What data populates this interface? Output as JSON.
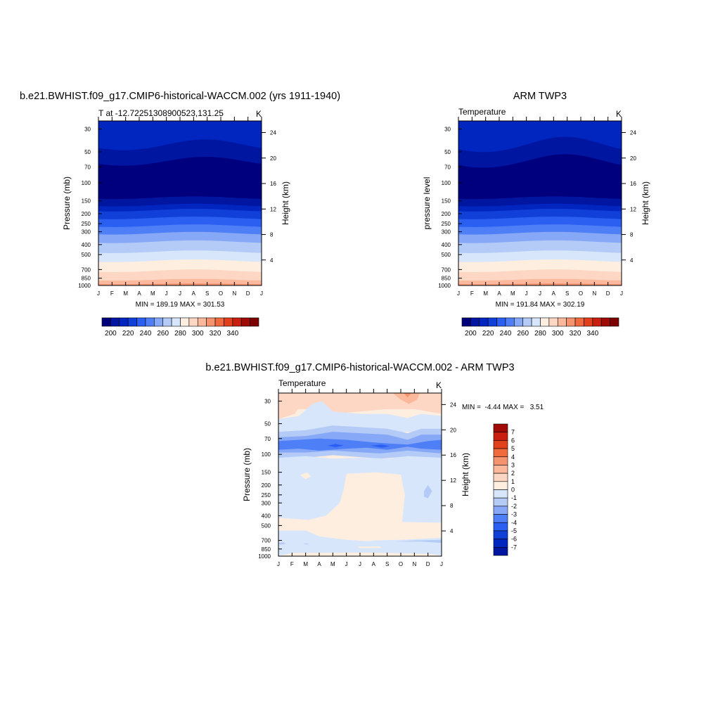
{
  "chart_data": [
    {
      "type": "heatmap",
      "title": "b.e21.BWHIST.f09_g17.CMIP6-historical-WACCM.002 (yrs 1911-1940)",
      "subtitle": "T at -12.72251308900523,131.25",
      "units": "K",
      "ylabel": "Pressure (mb)",
      "ylabel_right": "Height (km)",
      "x_tick_labels": [
        "J",
        "F",
        "M",
        "A",
        "M",
        "J",
        "J",
        "A",
        "S",
        "O",
        "N",
        "D",
        "J"
      ],
      "y_tick_labels": [
        "30",
        "50",
        "70",
        "100",
        "150",
        "200",
        "250",
        "300",
        "400",
        "500",
        "700",
        "850",
        "1000"
      ],
      "y_right_tick_labels": [
        "24",
        "20",
        "16",
        "12",
        "8",
        "4"
      ],
      "y_right_ticks_km": [
        24,
        20,
        16,
        12,
        8,
        4
      ],
      "ylim": [
        1000,
        25
      ],
      "stats_text": "MIN = 189.19  MAX = 301.53",
      "min": 189.19,
      "max": 301.53,
      "levels": [
        195,
        200,
        205,
        210,
        215,
        220,
        225,
        230,
        235,
        240,
        245,
        250,
        255,
        260,
        265,
        270,
        275,
        280,
        285,
        290,
        295
      ],
      "colorbar_labels": [
        "200",
        "220",
        "240",
        "260",
        "280",
        "300",
        "320",
        "340"
      ]
    },
    {
      "type": "heatmap",
      "title": "ARM TWP3",
      "subtitle": "Temperature",
      "units": "K",
      "ylabel": "pressure level",
      "ylabel_right": "Height (km)",
      "x_tick_labels": [
        "J",
        "F",
        "M",
        "A",
        "M",
        "J",
        "J",
        "A",
        "S",
        "O",
        "N",
        "D",
        "J"
      ],
      "y_tick_labels": [
        "30",
        "50",
        "70",
        "100",
        "150",
        "200",
        "250",
        "300",
        "400",
        "500",
        "700",
        "850",
        "1000"
      ],
      "y_right_tick_labels": [
        "24",
        "20",
        "16",
        "12",
        "8",
        "4"
      ],
      "y_right_ticks_km": [
        24,
        20,
        16,
        12,
        8,
        4
      ],
      "ylim": [
        1000,
        25
      ],
      "stats_text": "MIN = 191.84  MAX = 302.19",
      "min": 191.84,
      "max": 302.19,
      "colorbar_labels": [
        "200",
        "220",
        "240",
        "260",
        "280",
        "300",
        "320",
        "340"
      ]
    },
    {
      "type": "heatmap",
      "title": "b.e21.BWHIST.f09_g17.CMIP6-historical-WACCM.002 - ARM TWP3",
      "subtitle": "Temperature",
      "units": "K",
      "ylabel": "Pressure (mb)",
      "ylabel_right": "Height (km)",
      "x_tick_labels": [
        "J",
        "F",
        "M",
        "A",
        "M",
        "J",
        "J",
        "A",
        "S",
        "O",
        "N",
        "D",
        "J"
      ],
      "y_tick_labels": [
        "30",
        "50",
        "70",
        "100",
        "150",
        "200",
        "250",
        "300",
        "400",
        "500",
        "700",
        "850",
        "1000"
      ],
      "y_right_tick_labels": [
        "24",
        "20",
        "16",
        "12",
        "8",
        "4"
      ],
      "y_right_ticks_km": [
        24,
        20,
        16,
        12,
        8,
        4
      ],
      "ylim": [
        1000,
        25
      ],
      "stats_text": "MIN =  -4.44 MAX =   3.51",
      "min": -4.44,
      "max": 3.51,
      "colorbar_labels": [
        "7",
        "6",
        "5",
        "4",
        "3",
        "2",
        "1",
        "0",
        "-1",
        "-2",
        "-3",
        "-4",
        "-5",
        "-6",
        "-7"
      ]
    }
  ],
  "palette_abs": [
    "#00007f",
    "#0015a0",
    "#0026bf",
    "#1040d8",
    "#2a5ff2",
    "#4f7ff7",
    "#86a8f7",
    "#b4cbf7",
    "#d8e6fc",
    "#fdeee0",
    "#fdd7c3",
    "#fbb89b",
    "#f6936f",
    "#f06a3e",
    "#e23f1c",
    "#c81f10",
    "#a10b07",
    "#7c0000"
  ],
  "palette_diff": [
    "#00007f",
    "#0015a0",
    "#0026bf",
    "#1040d8",
    "#2a5ff2",
    "#4f7ff7",
    "#86a8f7",
    "#b4cbf7",
    "#d8e6fc",
    "#fdeee0",
    "#fdd7c3",
    "#fbb89b",
    "#f6936f",
    "#f06a3e",
    "#e23f1c",
    "#c81f10",
    "#a10b07",
    "#7c0000"
  ]
}
